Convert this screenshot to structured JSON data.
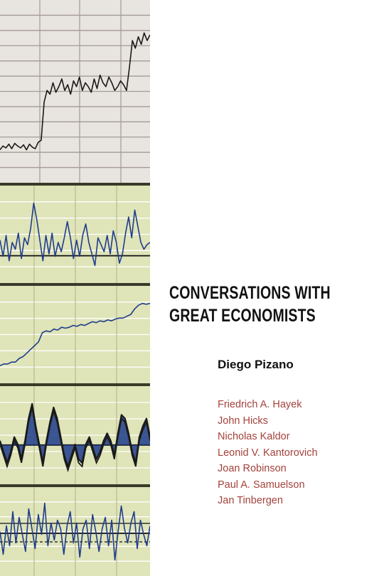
{
  "cover": {
    "title_line1": "CONVERSATIONS WITH",
    "title_line2": "GREAT ECONOMISTS",
    "author": "Diego Pizano",
    "economists": [
      "Friedrich A. Hayek",
      "John Hicks",
      "Nicholas Kaldor",
      "Leonid V. Kantorovich",
      "Joan Robinson",
      "Paul A. Samuelson",
      "Jan Tinbergen"
    ]
  },
  "colors": {
    "title": "#111111",
    "names": "#a3423b",
    "panel_gray": "#e8e4df",
    "panel_green": "#dfe4b9",
    "line_blue": "#1f3c8c"
  },
  "chart_data": {
    "type": "line",
    "panels": [
      {
        "style": "dark-line-gray",
        "values": [
          0.45,
          0.55,
          0.5,
          0.6,
          0.48,
          0.62,
          0.55,
          0.5,
          0.58,
          0.45,
          0.6,
          0.52,
          0.48,
          0.65,
          0.7,
          1.7,
          2.0,
          1.9,
          2.2,
          1.95,
          2.1,
          2.3,
          2.0,
          2.15,
          1.9,
          2.25,
          2.1,
          2.35,
          2.0,
          2.2,
          2.1,
          1.95,
          2.3,
          2.05,
          2.4,
          2.2,
          2.1,
          2.35,
          2.2,
          2.0,
          2.1,
          2.25,
          2.15,
          2.0,
          2.6,
          3.3,
          3.1,
          3.4,
          3.2,
          3.5,
          3.3,
          3.45
        ]
      },
      {
        "style": "blue-line-green",
        "values": [
          0.3,
          -0.4,
          0.5,
          -0.6,
          0.2,
          -0.1,
          0.6,
          -0.5,
          0.4,
          0.1,
          0.8,
          1.9,
          1.2,
          0.3,
          -0.6,
          0.5,
          -0.3,
          0.6,
          -0.4,
          0.2,
          -0.2,
          0.4,
          1.1,
          0.4,
          -0.5,
          0.3,
          -0.4,
          0.5,
          1.0,
          0.2,
          -0.3,
          -0.8,
          0.4,
          0.1,
          -0.2,
          0.5,
          -0.3,
          0.7,
          0.2,
          -0.7,
          -0.3,
          0.6,
          1.3,
          0.4,
          1.6,
          0.9,
          0.2,
          -0.1,
          0.1,
          0.2
        ]
      },
      {
        "style": "blue-line-green",
        "values": [
          0.5,
          0.6,
          0.6,
          0.7,
          0.7,
          0.9,
          1.0,
          1.2,
          1.4,
          1.6,
          1.8,
          2.3,
          2.4,
          2.35,
          2.5,
          2.45,
          2.6,
          2.55,
          2.6,
          2.7,
          2.65,
          2.75,
          2.7,
          2.8,
          2.9,
          2.85,
          2.95,
          2.9,
          3.0,
          2.95,
          3.05,
          3.1,
          3.1,
          3.2,
          3.3,
          3.6,
          3.8,
          3.9,
          3.85,
          3.9
        ]
      },
      {
        "style": "black-double-green",
        "values": [
          0.2,
          -0.1,
          -0.4,
          -0.1,
          0.3,
          0.1,
          -0.3,
          0.2,
          0.8,
          1.2,
          0.6,
          0.1,
          -0.4,
          0.2,
          0.7,
          1.1,
          0.8,
          0.3,
          -0.2,
          -0.5,
          -0.2,
          0.1,
          -0.3,
          -0.4,
          0.1,
          0.3,
          0.0,
          -0.3,
          -0.1,
          0.2,
          0.4,
          0.2,
          -0.2,
          0.4,
          0.9,
          0.8,
          0.4,
          -0.1,
          -0.4,
          0.3,
          0.6,
          0.8,
          0.3
        ]
      },
      {
        "style": "blue-dashed-green",
        "values": [
          0.2,
          -0.6,
          0.4,
          -0.3,
          0.9,
          -0.2,
          0.7,
          0.1,
          -0.5,
          1.0,
          0.3,
          -0.4,
          0.8,
          0.1,
          1.2,
          -0.3,
          0.5,
          -0.1,
          0.6,
          0.3,
          -0.6,
          0.4,
          0.9,
          -0.2,
          0.5,
          -0.7,
          0.3,
          0.6,
          -0.4,
          0.8,
          0.2,
          -0.5,
          0.3,
          0.7,
          -0.3,
          0.6,
          -0.8,
          0.2,
          1.1,
          0.3,
          -0.2,
          0.5,
          0.9,
          -0.4,
          0.6,
          0.1,
          -0.3,
          0.4
        ]
      }
    ]
  }
}
